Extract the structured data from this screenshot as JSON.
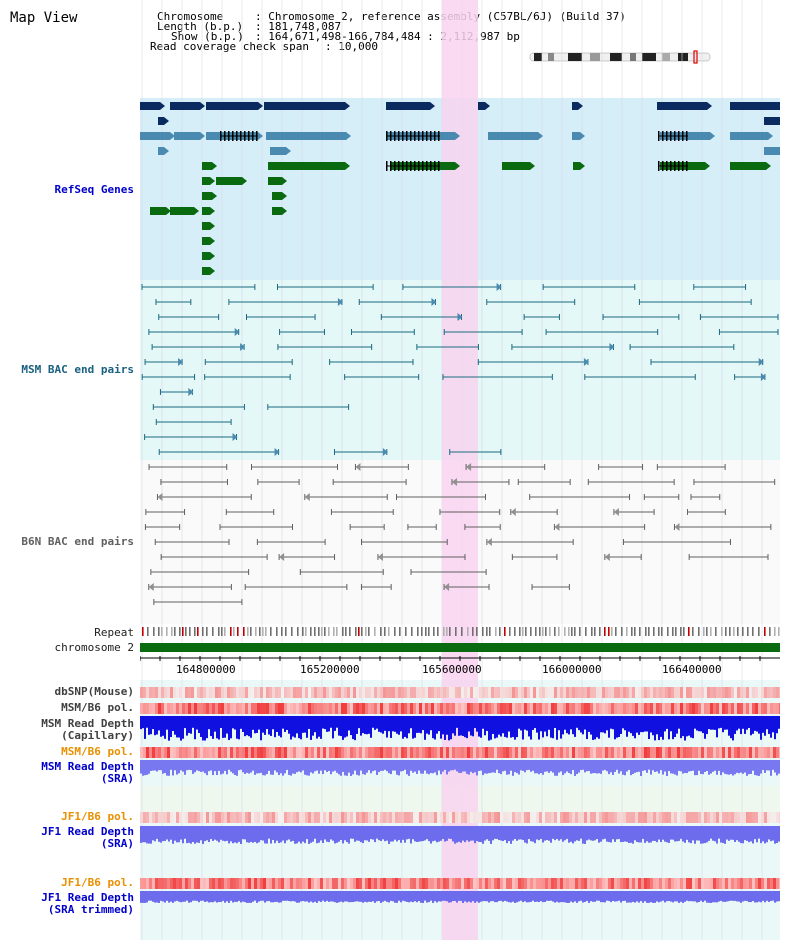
{
  "title": "Map View",
  "info": {
    "chromosome_key": "Chromosome",
    "chromosome_val": ": Chromosome 2, reference assembly (C57BL/6J) (Build 37)",
    "length_key": "Length (b.p.)",
    "length_val": ": 181,748,087",
    "show_key": "Show (b.p.)",
    "show_val": ": 164,671,498-166,784,484 : 2,112,987 bp",
    "coverage_key": "Read coverage check span",
    "coverage_val": ": 10,000"
  },
  "tracks": {
    "refseq": "RefSeq Genes",
    "msm_bac": "MSM BAC end pairs",
    "b6n_bac": "B6N BAC end pairs",
    "repeat": "Repeat",
    "chromosome": "chromosome 2",
    "dbsnp": "dbSNP(Mouse)",
    "msm_pol1": "MSM/B6 pol.",
    "msm_depth_cap_1": "MSM Read Depth",
    "msm_depth_cap_2": "(Capillary)",
    "msm_pol2": "MSM/B6 pol.",
    "msm_depth_sra_1": "MSM Read Depth",
    "msm_depth_sra_2": "(SRA)",
    "jf1_pol1": "JF1/B6 pol.",
    "jf1_depth_sra_1": "JF1 Read Depth",
    "jf1_depth_sra_2": "(SRA)",
    "jf1_pol2": "JF1/B6 pol.",
    "jf1_depth_trim_1": "JF1 Read Depth",
    "jf1_depth_trim_2": "(SRA trimmed)"
  },
  "axis": {
    "ticks": [
      "164800000",
      "165200000",
      "165600000",
      "166000000",
      "166400000"
    ]
  },
  "colors": {
    "highlight": "#f8d4f0",
    "refseq_bg": "#d6eef8",
    "bac_bg": "#e4f8f8",
    "navy": "#0a2a60",
    "steel": "#4a8ab0",
    "green": "#0a6a10",
    "teal_line": "#1a6a80",
    "grey_line": "#606060",
    "chrom_bar": "#0a6a10"
  }
}
